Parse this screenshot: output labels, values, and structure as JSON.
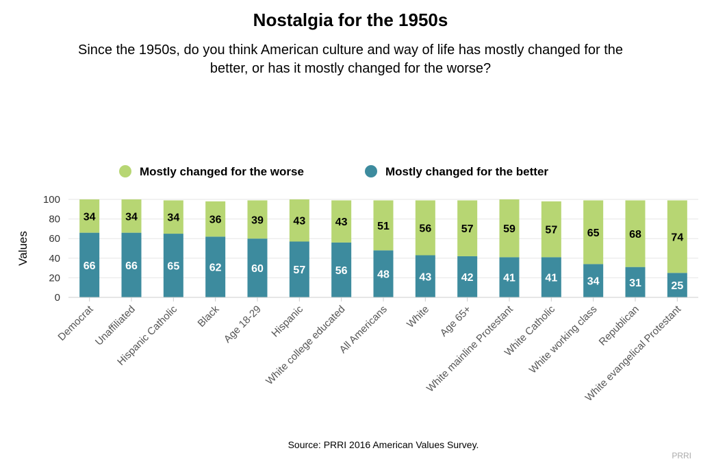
{
  "chart_data": {
    "type": "bar",
    "stacked": true,
    "title": "Nostalgia for the 1950s",
    "subtitle": "Since the 1950s, do you think American culture and way of life has mostly changed for the better, or has it mostly changed for the worse?",
    "ylabel": "Values",
    "xlabel": "",
    "ylim": [
      0,
      100
    ],
    "yticks": [
      0,
      20,
      40,
      60,
      80,
      100
    ],
    "legend_position": "top",
    "categories": [
      "Democrat",
      "Unaffiliated",
      "Hispanic Catholic",
      "Black",
      "Age 18-29",
      "Hispanic",
      "White college educated",
      "All Americans",
      "White",
      "Age 65+",
      "White mainline Protestant",
      "White Catholic",
      "White working class",
      "Republican",
      "White evangelical Protestant"
    ],
    "series": [
      {
        "name": "Mostly changed for the better",
        "color": "#3d8b9e",
        "label_color": "#ffffff",
        "values": [
          66,
          66,
          65,
          62,
          60,
          57,
          56,
          48,
          43,
          42,
          41,
          41,
          34,
          31,
          25
        ]
      },
      {
        "name": "Mostly changed for the worse",
        "color": "#b7d673",
        "label_color": "#000000",
        "values": [
          34,
          34,
          34,
          36,
          39,
          43,
          43,
          51,
          56,
          57,
          59,
          57,
          65,
          68,
          74
        ]
      }
    ],
    "legend_order": [
      "Mostly changed for the worse",
      "Mostly changed for the better"
    ],
    "source": "Source: PRRI 2016 American Values Survey.",
    "credit": "PRRI"
  }
}
